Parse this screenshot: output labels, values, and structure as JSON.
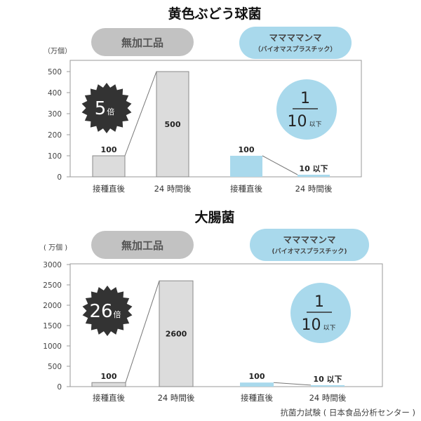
{
  "footer": "抗菌力試験 ( 日本食品分析センター )",
  "chart_data": [
    {
      "type": "bar",
      "title": "黄色ぶどう球菌",
      "unit_label": "（万個）",
      "ylim": [
        0,
        500
      ],
      "yticks": [
        "0",
        "100",
        "200",
        "300",
        "400",
        "500"
      ],
      "groups": [
        {
          "name": "無加工品",
          "categories": [
            "接種直後",
            "24 時間後"
          ],
          "values": [
            100,
            500
          ],
          "labels": [
            "100",
            "500"
          ],
          "color": "#dcdcdc"
        },
        {
          "name": "ママママンマ",
          "name_sub": "（バイオマスプラスチック）",
          "categories": [
            "接種直後",
            "24 時間後"
          ],
          "values": [
            100,
            10
          ],
          "labels": [
            "100",
            "10 以下"
          ],
          "color": "#a9d9ec"
        }
      ],
      "badge": {
        "number": "5",
        "suffix": "倍"
      },
      "ratio": {
        "numerator": "1",
        "denominator": "10",
        "suffix": "以下"
      }
    },
    {
      "type": "bar",
      "title": "大腸菌",
      "unit_label": "( 万個 )",
      "ylim": [
        0,
        3000
      ],
      "yticks": [
        "0",
        "500",
        "1000",
        "1500",
        "2000",
        "2500",
        "3000"
      ],
      "groups": [
        {
          "name": "無加工品",
          "categories": [
            "接種直後",
            "24 時間後"
          ],
          "values": [
            100,
            2600
          ],
          "labels": [
            "100",
            "2600"
          ],
          "color": "#dcdcdc"
        },
        {
          "name": "ママママンマ",
          "name_sub": "(バイオマスプラスチック)",
          "categories": [
            "接種直後",
            "24 時間後"
          ],
          "values": [
            100,
            10
          ],
          "labels": [
            "100",
            "10 以下"
          ],
          "color": "#a9d9ec"
        }
      ],
      "badge": {
        "number": "26",
        "suffix": "倍"
      },
      "ratio": {
        "numerator": "1",
        "denominator": "10",
        "suffix": "以下"
      }
    }
  ]
}
